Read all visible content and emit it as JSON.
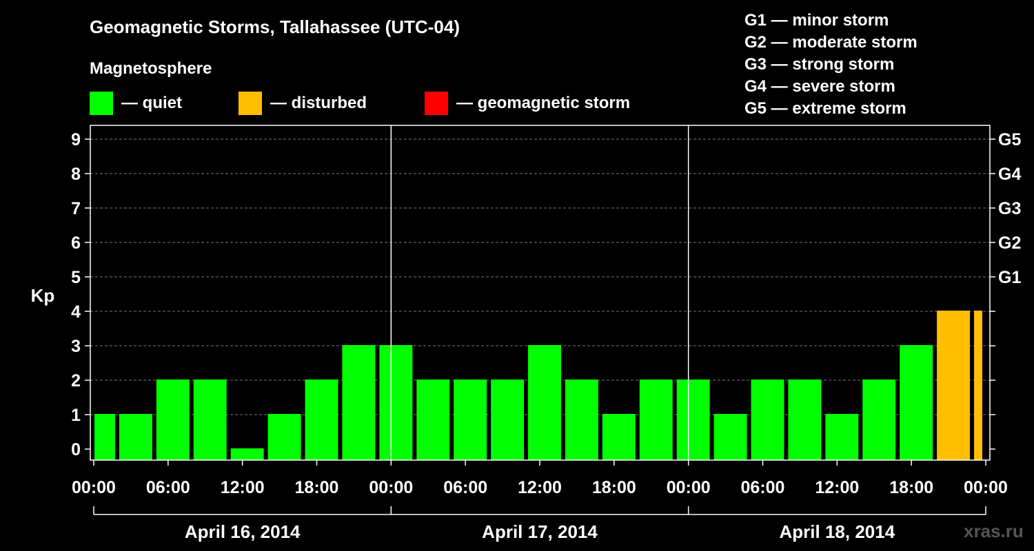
{
  "header": {
    "title": "Geomagnetic Storms, Tallahassee (UTC-04)",
    "subtitle": "Magnetosphere"
  },
  "legend": [
    {
      "label": "— quiet",
      "color": "#00ff00"
    },
    {
      "label": "— disturbed",
      "color": "#ffbf00"
    },
    {
      "label": "— geomagnetic storm",
      "color": "#ff0000"
    }
  ],
  "storm_scale": [
    "G1 — minor storm",
    "G2 — moderate storm",
    "G3 — strong storm",
    "G4 — severe storm",
    "G5 — extreme storm"
  ],
  "watermark": "xras.ru",
  "chart_data": {
    "type": "bar",
    "ylabel": "Kp",
    "ylim": [
      0,
      9
    ],
    "y_ticks": [
      "0",
      "1",
      "2",
      "3",
      "4",
      "5",
      "6",
      "7",
      "8",
      "9"
    ],
    "g_ticks": [
      {
        "label": "G1",
        "kp": 5
      },
      {
        "label": "G2",
        "kp": 6
      },
      {
        "label": "G3",
        "kp": 7
      },
      {
        "label": "G4",
        "kp": 8
      },
      {
        "label": "G5",
        "kp": 9
      }
    ],
    "x_ticks": [
      "00:00",
      "06:00",
      "12:00",
      "18:00",
      "00:00",
      "06:00",
      "12:00",
      "18:00",
      "00:00",
      "06:00",
      "12:00",
      "18:00",
      "00:00"
    ],
    "days": [
      "April 16, 2014",
      "April 17, 2014",
      "April 18, 2014"
    ],
    "x_range_hours": [
      0,
      72
    ],
    "grid": "horizontal dashed",
    "colors": {
      "quiet": "#00ff00",
      "disturbed": "#ffbf00",
      "storm": "#ff0000"
    },
    "bars": [
      {
        "start": 0,
        "end": 2,
        "value": 1,
        "level": "quiet"
      },
      {
        "start": 2,
        "end": 5,
        "value": 1,
        "level": "quiet"
      },
      {
        "start": 5,
        "end": 8,
        "value": 2,
        "level": "quiet"
      },
      {
        "start": 8,
        "end": 11,
        "value": 2,
        "level": "quiet"
      },
      {
        "start": 11,
        "end": 14,
        "value": 0,
        "level": "quiet"
      },
      {
        "start": 14,
        "end": 17,
        "value": 1,
        "level": "quiet"
      },
      {
        "start": 17,
        "end": 20,
        "value": 2,
        "level": "quiet"
      },
      {
        "start": 20,
        "end": 23,
        "value": 3,
        "level": "quiet"
      },
      {
        "start": 23,
        "end": 26,
        "value": 3,
        "level": "quiet"
      },
      {
        "start": 26,
        "end": 29,
        "value": 2,
        "level": "quiet"
      },
      {
        "start": 29,
        "end": 32,
        "value": 2,
        "level": "quiet"
      },
      {
        "start": 32,
        "end": 35,
        "value": 2,
        "level": "quiet"
      },
      {
        "start": 35,
        "end": 38,
        "value": 3,
        "level": "quiet"
      },
      {
        "start": 38,
        "end": 41,
        "value": 2,
        "level": "quiet"
      },
      {
        "start": 41,
        "end": 44,
        "value": 1,
        "level": "quiet"
      },
      {
        "start": 44,
        "end": 47,
        "value": 2,
        "level": "quiet"
      },
      {
        "start": 47,
        "end": 50,
        "value": 2,
        "level": "quiet"
      },
      {
        "start": 50,
        "end": 53,
        "value": 1,
        "level": "quiet"
      },
      {
        "start": 53,
        "end": 56,
        "value": 2,
        "level": "quiet"
      },
      {
        "start": 56,
        "end": 59,
        "value": 2,
        "level": "quiet"
      },
      {
        "start": 59,
        "end": 62,
        "value": 1,
        "level": "quiet"
      },
      {
        "start": 62,
        "end": 65,
        "value": 2,
        "level": "quiet"
      },
      {
        "start": 65,
        "end": 68,
        "value": 3,
        "level": "quiet"
      },
      {
        "start": 68,
        "end": 71,
        "value": 4,
        "level": "disturbed"
      },
      {
        "start": 71,
        "end": 72,
        "value": 4,
        "level": "disturbed"
      }
    ]
  }
}
